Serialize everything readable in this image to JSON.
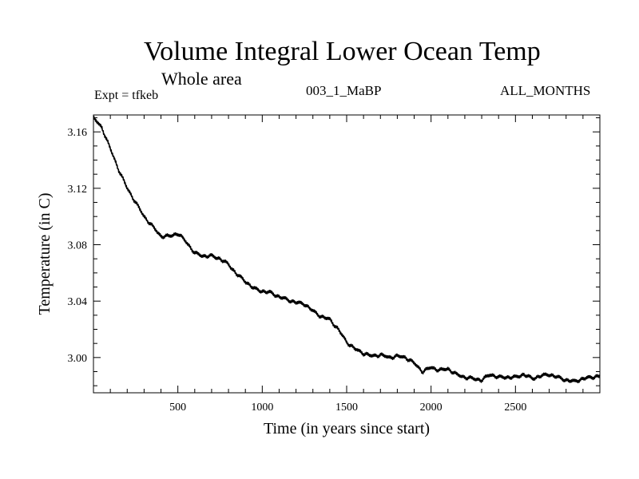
{
  "header": {
    "title": "Volume Integral Lower Ocean Temp",
    "subtitle": "Whole area",
    "experiment": "Expt = tfkeb",
    "run_id": "003_1_MaBP",
    "months": "ALL_MONTHS"
  },
  "chart_data": {
    "type": "line",
    "title": "Volume Integral Lower Ocean Temp",
    "subtitle": "Whole area",
    "xlabel": "Time (in years since start)",
    "ylabel": "Temperature (in C)",
    "xlim": [
      0,
      3000
    ],
    "ylim": [
      2.975,
      3.172
    ],
    "xticks": [
      500,
      1000,
      1500,
      2000,
      2500
    ],
    "yticks": [
      3.0,
      3.04,
      3.08,
      3.12,
      3.16
    ],
    "ytick_labels": [
      "3.00",
      "3.04",
      "3.08",
      "3.12",
      "3.16"
    ],
    "grid": false,
    "line_color": "#000000",
    "series": [
      {
        "x": [
          0,
          50,
          100,
          150,
          200,
          250,
          300,
          350,
          400,
          450,
          500,
          550,
          600,
          650,
          700,
          750,
          800,
          850,
          900,
          950,
          1000,
          1050,
          1100,
          1150,
          1200,
          1250,
          1300,
          1350,
          1400,
          1450,
          1500,
          1550,
          1600,
          1650,
          1700,
          1750,
          1800,
          1850,
          1900,
          1950,
          2000,
          2050,
          2100,
          2150,
          2200,
          2250,
          2300,
          2350,
          2400,
          2450,
          2500,
          2550,
          2600,
          2650,
          2700,
          2750,
          2800,
          2850,
          2900,
          2950,
          3000
        ],
        "y": [
          3.17,
          3.163,
          3.148,
          3.133,
          3.12,
          3.11,
          3.1,
          3.093,
          3.086,
          3.086,
          3.088,
          3.082,
          3.074,
          3.072,
          3.072,
          3.07,
          3.066,
          3.059,
          3.054,
          3.049,
          3.047,
          3.046,
          3.043,
          3.041,
          3.039,
          3.038,
          3.033,
          3.029,
          3.027,
          3.02,
          3.011,
          3.006,
          3.003,
          3.001,
          3.002,
          3.0,
          3.001,
          3.0,
          2.996,
          2.99,
          2.993,
          2.991,
          2.992,
          2.988,
          2.986,
          2.985,
          2.984,
          2.988,
          2.986,
          2.986,
          2.986,
          2.988,
          2.985,
          2.987,
          2.988,
          2.986,
          2.984,
          2.983,
          2.985,
          2.986,
          2.987
        ]
      }
    ]
  }
}
